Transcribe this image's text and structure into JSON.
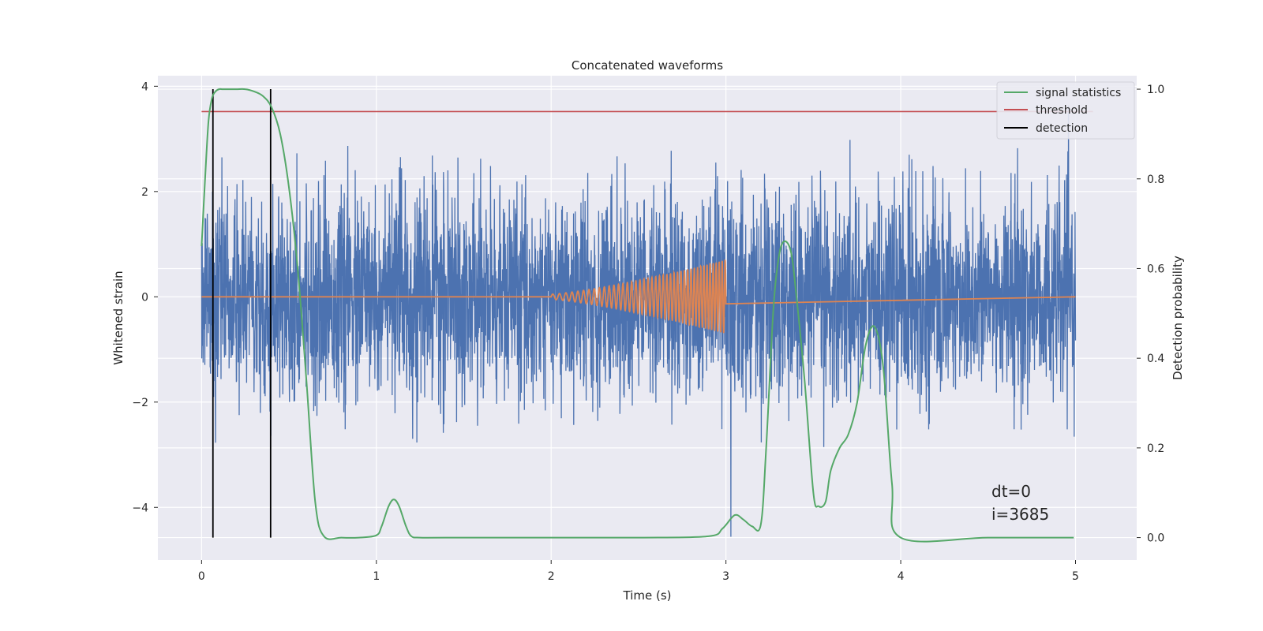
{
  "chart_data": {
    "type": "line",
    "title": "Concatenated waveforms",
    "xlabel": "Time (s)",
    "ylabel": "Whitened strain",
    "ylabel_right": "Detection probability",
    "xlim": [
      -0.25,
      5.35
    ],
    "ylim": [
      -5.0,
      4.2
    ],
    "ylim_right": [
      -0.05,
      1.03
    ],
    "x_ticks": [
      0,
      1,
      2,
      3,
      4,
      5
    ],
    "y_ticks": [
      -4,
      -2,
      0,
      2,
      4
    ],
    "y_ticks_right": [
      0.0,
      0.2,
      0.4,
      0.6,
      0.8,
      1.0
    ],
    "grid": true,
    "legend_position": "top-right",
    "colors": {
      "strain": "#4c72b0",
      "injected_signal": "#dd8452",
      "signal_statistics": "#55a868",
      "threshold": "#c44e52",
      "detection": "#000000",
      "background": "#eaeaf2",
      "grid": "#ffffff"
    },
    "legend": [
      {
        "name": "signal statistics",
        "color": "#55a868"
      },
      {
        "name": "threshold",
        "color": "#c44e52"
      },
      {
        "name": "detection",
        "color": "#000000"
      }
    ],
    "strain_noise": {
      "axis": "left",
      "x_range": [
        0,
        5
      ],
      "description_values": {
        "typical_amplitude": 1.0,
        "max": 3.75,
        "min": -4.7
      }
    },
    "injected_signal": {
      "axis": "left",
      "x_start": 2.0,
      "x_end": 3.0,
      "amplitude_start": 0.05,
      "amplitude_end": 0.7,
      "freq_start": 25,
      "freq_end": 60
    },
    "signal_statistics": {
      "axis": "right",
      "x": [
        0.0,
        0.02,
        0.04,
        0.06,
        0.08,
        0.1,
        0.12,
        0.15,
        0.2,
        0.25,
        0.3,
        0.35,
        0.4,
        0.45,
        0.5,
        0.55,
        0.6,
        0.65,
        0.7,
        0.8,
        0.9,
        1.0,
        1.03,
        1.07,
        1.1,
        1.13,
        1.17,
        1.2,
        1.25,
        1.4,
        2.0,
        2.5,
        2.9,
        2.98,
        3.05,
        3.1,
        3.15,
        3.2,
        3.23,
        3.27,
        3.3,
        3.33,
        3.37,
        3.4,
        3.45,
        3.5,
        3.53,
        3.57,
        3.6,
        3.65,
        3.7,
        3.75,
        3.8,
        3.85,
        3.9,
        3.95,
        4.0,
        4.5,
        4.99
      ],
      "y": [
        0.65,
        0.8,
        0.93,
        0.98,
        0.995,
        1.0,
        1.0,
        1.0,
        1.0,
        1.0,
        0.995,
        0.985,
        0.96,
        0.9,
        0.78,
        0.6,
        0.35,
        0.08,
        0.003,
        0.0,
        0.0,
        0.005,
        0.025,
        0.07,
        0.085,
        0.07,
        0.025,
        0.003,
        0.0,
        0.0,
        0.0,
        0.0,
        0.003,
        0.02,
        0.05,
        0.04,
        0.025,
        0.03,
        0.2,
        0.5,
        0.62,
        0.66,
        0.64,
        0.55,
        0.35,
        0.1,
        0.07,
        0.08,
        0.15,
        0.2,
        0.23,
        0.3,
        0.43,
        0.47,
        0.38,
        0.12,
        0.0,
        0.0,
        0.0
      ]
    },
    "threshold": {
      "axis": "right",
      "value": 0.95,
      "x_range": [
        0,
        5.1
      ]
    },
    "detections": {
      "axis": "right",
      "x": [
        0.065,
        0.395
      ],
      "y_range": [
        0.0,
        1.0
      ]
    },
    "annotations": [
      {
        "text": "dt=0"
      },
      {
        "text": "i=3685"
      }
    ]
  }
}
